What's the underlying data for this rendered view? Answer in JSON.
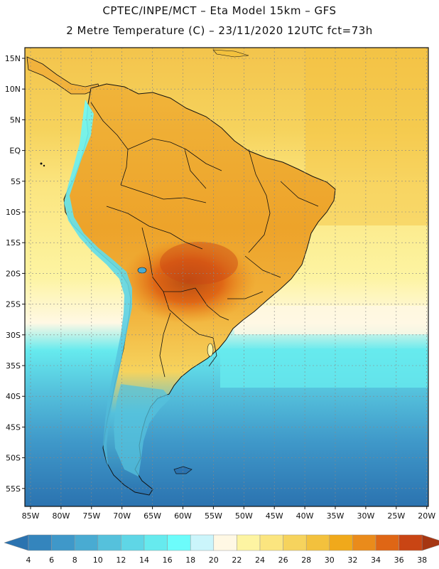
{
  "header": {
    "line1": "CPTEC/INPE/MCT –  Eta Model 15km – GFS",
    "line2": "2 Metre Temperature (C) – 23/11/2020 12UTC fct=73h"
  },
  "map": {
    "lat_labels": [
      "15N",
      "10N",
      "5N",
      "EQ",
      "5S",
      "10S",
      "15S",
      "20S",
      "25S",
      "30S",
      "35S",
      "40S",
      "45S",
      "50S",
      "55S"
    ],
    "lon_labels": [
      "85W",
      "80W",
      "75W",
      "70W",
      "65W",
      "60W",
      "55W",
      "50W",
      "45W",
      "40W",
      "35W",
      "30W",
      "25W",
      "20W"
    ]
  },
  "legend": {
    "values": [
      "4",
      "6",
      "8",
      "10",
      "12",
      "14",
      "16",
      "18",
      "20",
      "22",
      "24",
      "26",
      "28",
      "30",
      "32",
      "34",
      "36",
      "38"
    ],
    "colors": [
      "#2b73b0",
      "#3485bd",
      "#3f98c9",
      "#49abd2",
      "#55c1dc",
      "#5fd6e6",
      "#66eaee",
      "#6cfcfb",
      "#cbf5fb",
      "#fff8e4",
      "#fdf4a2",
      "#fbe57f",
      "#f6d35d",
      "#f3c13d",
      "#f0a91b",
      "#ea8b1b",
      "#df6615",
      "#c94514",
      "#a63612"
    ]
  }
}
